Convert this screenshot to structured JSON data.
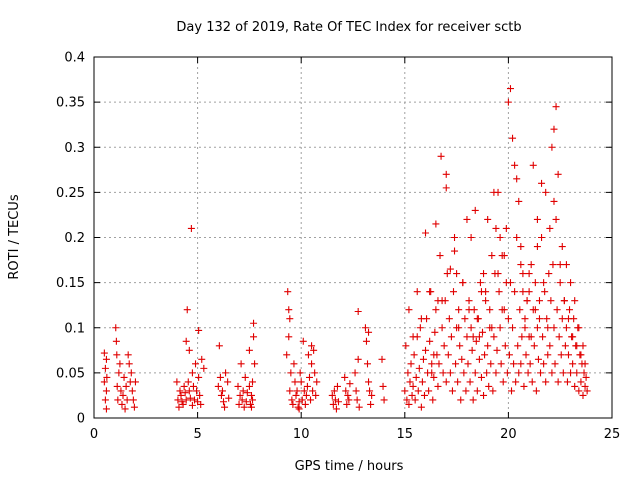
{
  "chart_data": {
    "type": "scatter",
    "title": "Day 132 of 2019, Rate Of TEC Index for receiver sctb",
    "xlabel": "GPS time / hours",
    "ylabel": "ROTI / TECUs",
    "xlim": [
      0,
      25
    ],
    "ylim": [
      0,
      0.4
    ],
    "x_ticks": [
      0,
      5,
      10,
      15,
      20,
      25
    ],
    "x_tick_labels": [
      "0",
      "5",
      "10",
      "15",
      "20",
      "25"
    ],
    "y_ticks": [
      0,
      0.05,
      0.1,
      0.15,
      0.2,
      0.25,
      0.3,
      0.35,
      0.4
    ],
    "y_tick_labels": [
      "0",
      "0.05",
      "0.1",
      "0.15",
      "0.2",
      "0.25",
      "0.3",
      "0.35",
      "0.4"
    ],
    "grid": true,
    "marker": "+",
    "color": "#e00000",
    "series": [
      {
        "name": "ROTI",
        "x": [
          0.5,
          0.5,
          0.55,
          0.55,
          0.6,
          0.6,
          0.6,
          0.62,
          1.05,
          1.08,
          1.1,
          1.12,
          1.15,
          1.2,
          1.25,
          1.3,
          1.35,
          1.4,
          1.45,
          1.5,
          1.55,
          1.6,
          1.65,
          1.7,
          1.75,
          1.8,
          1.85,
          1.9,
          1.95,
          2.0,
          4.0,
          4.05,
          4.1,
          4.15,
          4.2,
          4.25,
          4.3,
          4.35,
          4.4,
          4.45,
          4.5,
          4.55,
          4.6,
          4.65,
          4.7,
          4.75,
          4.8,
          4.85,
          4.9,
          4.95,
          5.0,
          5.05,
          5.1,
          5.15,
          5.2,
          5.3,
          4.45,
          4.6,
          4.75,
          5.05,
          6.0,
          6.05,
          6.1,
          6.15,
          6.2,
          6.25,
          6.3,
          6.35,
          6.45,
          6.5,
          6.95,
          7.0,
          7.05,
          7.1,
          7.15,
          7.2,
          7.25,
          7.3,
          7.35,
          7.4,
          7.5,
          7.55,
          7.6,
          7.65,
          7.7,
          7.75,
          7.7,
          7.65,
          7.5,
          7.6,
          9.3,
          9.35,
          9.4,
          9.45,
          9.5,
          9.55,
          9.6,
          9.65,
          9.7,
          9.75,
          9.8,
          9.85,
          9.9,
          9.95,
          10.0,
          10.05,
          10.1,
          10.15,
          10.2,
          10.25,
          10.3,
          10.35,
          10.4,
          10.45,
          10.5,
          10.55,
          10.6,
          10.65,
          10.7,
          10.75,
          9.4,
          9.45,
          9.9,
          10.5,
          11.5,
          11.55,
          11.6,
          11.65,
          11.7,
          11.75,
          11.8,
          12.1,
          12.15,
          12.2,
          12.25,
          12.3,
          12.35,
          12.6,
          12.65,
          12.7,
          12.75,
          12.8,
          13.1,
          13.15,
          13.2,
          13.25,
          13.3,
          13.35,
          13.4,
          13.9,
          13.95,
          14.0,
          12.75,
          13.25,
          15.0,
          15.05,
          15.1,
          15.15,
          15.2,
          15.25,
          15.3,
          15.35,
          15.4,
          15.45,
          15.5,
          15.55,
          15.6,
          15.65,
          15.7,
          15.75,
          15.8,
          15.85,
          15.9,
          15.95,
          16.0,
          16.05,
          16.1,
          16.15,
          16.2,
          16.25,
          16.3,
          16.35,
          16.4,
          16.45,
          16.5,
          16.55,
          16.6,
          16.65,
          16.7,
          16.75,
          16.8,
          16.85,
          16.9,
          16.95,
          17.0,
          17.05,
          17.1,
          17.15,
          17.2,
          17.25,
          17.3,
          17.35,
          17.4,
          17.45,
          17.5,
          17.55,
          17.6,
          17.65,
          17.7,
          17.75,
          17.8,
          17.85,
          17.9,
          17.95,
          18.0,
          18.05,
          18.1,
          18.15,
          18.2,
          18.25,
          18.3,
          18.35,
          18.4,
          18.45,
          18.5,
          18.55,
          18.6,
          18.65,
          18.7,
          18.75,
          18.8,
          18.85,
          18.9,
          18.95,
          19.0,
          19.05,
          19.1,
          19.15,
          19.2,
          19.25,
          19.3,
          19.35,
          19.4,
          19.45,
          19.5,
          19.55,
          19.6,
          19.65,
          19.7,
          19.75,
          19.8,
          19.85,
          19.9,
          19.95,
          20.0,
          20.05,
          20.1,
          20.15,
          20.2,
          20.25,
          20.3,
          20.35,
          20.4,
          20.45,
          20.5,
          20.55,
          20.6,
          20.65,
          20.7,
          20.75,
          20.8,
          20.85,
          20.9,
          20.95,
          21.0,
          21.05,
          21.1,
          21.15,
          21.2,
          21.25,
          21.3,
          21.35,
          21.4,
          21.45,
          21.5,
          21.55,
          21.6,
          21.65,
          21.7,
          21.75,
          21.8,
          21.85,
          21.9,
          21.95,
          22.0,
          22.05,
          22.1,
          22.15,
          22.2,
          22.25,
          22.3,
          22.35,
          22.4,
          22.45,
          22.5,
          22.55,
          22.6,
          22.65,
          22.7,
          22.75,
          22.8,
          22.85,
          22.9,
          22.95,
          23.0,
          23.05,
          23.1,
          23.15,
          23.2,
          23.25,
          23.3,
          23.35,
          23.4,
          23.45,
          23.5,
          23.55,
          23.6,
          23.65,
          23.7,
          23.75,
          23.8,
          16.0,
          16.5,
          17.0,
          17.4,
          17.5,
          18.0,
          18.4,
          18.6,
          19.3,
          19.4,
          19.6,
          19.8,
          20.0,
          20.1,
          20.2,
          20.3,
          20.4,
          20.5,
          20.6,
          21.0,
          21.2,
          21.4,
          21.6,
          21.8,
          22.0,
          22.1,
          22.2,
          22.3,
          22.4,
          22.6,
          22.8,
          23.0,
          23.2,
          23.4,
          23.6,
          16.2,
          16.8,
          17.2,
          18.2,
          18.8,
          15.2,
          15.4,
          15.6,
          15.8,
          16.4,
          16.6,
          17.6,
          17.8,
          18.1,
          18.3,
          18.5,
          18.7,
          18.9,
          19.1,
          19.5,
          19.7,
          19.9,
          20.7,
          20.8,
          20.9,
          21.1,
          21.3,
          21.5,
          21.7,
          21.9,
          22.5,
          22.7,
          22.9,
          23.1,
          23.3,
          23.5,
          23.7,
          19.2,
          19.0,
          21.4,
          22.2,
          21.0,
          20.6,
          17.0,
          16.3
        ],
        "y": [
          0.072,
          0.04,
          0.02,
          0.055,
          0.03,
          0.01,
          0.065,
          0.045,
          0.1,
          0.085,
          0.07,
          0.035,
          0.02,
          0.05,
          0.06,
          0.03,
          0.015,
          0.025,
          0.045,
          0.01,
          0.035,
          0.02,
          0.07,
          0.06,
          0.04,
          0.05,
          0.03,
          0.02,
          0.012,
          0.04,
          0.04,
          0.02,
          0.012,
          0.03,
          0.025,
          0.018,
          0.015,
          0.035,
          0.028,
          0.02,
          0.12,
          0.04,
          0.03,
          0.022,
          0.21,
          0.05,
          0.035,
          0.02,
          0.06,
          0.03,
          0.018,
          0.045,
          0.025,
          0.015,
          0.065,
          0.055,
          0.085,
          0.075,
          0.014,
          0.097,
          0.035,
          0.08,
          0.045,
          0.025,
          0.03,
          0.018,
          0.012,
          0.05,
          0.04,
          0.022,
          0.035,
          0.015,
          0.025,
          0.06,
          0.02,
          0.03,
          0.012,
          0.045,
          0.018,
          0.028,
          0.035,
          0.015,
          0.025,
          0.02,
          0.105,
          0.06,
          0.09,
          0.04,
          0.075,
          0.012,
          0.07,
          0.14,
          0.12,
          0.03,
          0.05,
          0.02,
          0.015,
          0.06,
          0.04,
          0.025,
          0.03,
          0.012,
          0.018,
          0.05,
          0.04,
          0.02,
          0.085,
          0.03,
          0.015,
          0.025,
          0.035,
          0.07,
          0.045,
          0.02,
          0.06,
          0.03,
          0.075,
          0.05,
          0.025,
          0.04,
          0.09,
          0.11,
          0.01,
          0.08,
          0.025,
          0.015,
          0.03,
          0.02,
          0.01,
          0.035,
          0.018,
          0.045,
          0.03,
          0.015,
          0.025,
          0.02,
          0.038,
          0.05,
          0.03,
          0.02,
          0.065,
          0.012,
          0.1,
          0.085,
          0.06,
          0.04,
          0.03,
          0.015,
          0.025,
          0.065,
          0.035,
          0.02,
          0.118,
          0.095,
          0.03,
          0.08,
          0.02,
          0.05,
          0.015,
          0.04,
          0.06,
          0.025,
          0.035,
          0.07,
          0.02,
          0.045,
          0.09,
          0.03,
          0.055,
          0.1,
          0.012,
          0.04,
          0.065,
          0.025,
          0.075,
          0.11,
          0.05,
          0.03,
          0.085,
          0.14,
          0.06,
          0.02,
          0.045,
          0.095,
          0.12,
          0.07,
          0.035,
          0.06,
          0.18,
          0.29,
          0.1,
          0.05,
          0.08,
          0.13,
          0.04,
          0.16,
          0.07,
          0.11,
          0.05,
          0.09,
          0.03,
          0.14,
          0.2,
          0.06,
          0.1,
          0.04,
          0.12,
          0.08,
          0.02,
          0.065,
          0.15,
          0.05,
          0.11,
          0.03,
          0.09,
          0.06,
          0.13,
          0.04,
          0.1,
          0.075,
          0.02,
          0.12,
          0.05,
          0.085,
          0.03,
          0.11,
          0.065,
          0.15,
          0.045,
          0.095,
          0.025,
          0.07,
          0.14,
          0.05,
          0.08,
          0.035,
          0.12,
          0.06,
          0.1,
          0.03,
          0.09,
          0.16,
          0.05,
          0.075,
          0.25,
          0.14,
          0.1,
          0.06,
          0.18,
          0.04,
          0.12,
          0.08,
          0.21,
          0.05,
          0.11,
          0.07,
          0.15,
          0.03,
          0.1,
          0.06,
          0.14,
          0.04,
          0.2,
          0.08,
          0.05,
          0.12,
          0.06,
          0.09,
          0.16,
          0.035,
          0.11,
          0.07,
          0.13,
          0.05,
          0.09,
          0.06,
          0.17,
          0.04,
          0.12,
          0.08,
          0.15,
          0.03,
          0.1,
          0.065,
          0.13,
          0.05,
          0.2,
          0.09,
          0.06,
          0.14,
          0.04,
          0.11,
          0.07,
          0.16,
          0.08,
          0.13,
          0.05,
          0.17,
          0.1,
          0.06,
          0.22,
          0.12,
          0.04,
          0.09,
          0.15,
          0.07,
          0.11,
          0.05,
          0.13,
          0.08,
          0.1,
          0.04,
          0.07,
          0.12,
          0.05,
          0.09,
          0.06,
          0.11,
          0.035,
          0.08,
          0.05,
          0.1,
          0.03,
          0.07,
          0.04,
          0.06,
          0.025,
          0.05,
          0.035,
          0.045,
          0.03,
          0.205,
          0.215,
          0.255,
          0.185,
          0.16,
          0.22,
          0.23,
          0.09,
          0.25,
          0.21,
          0.2,
          0.18,
          0.35,
          0.365,
          0.31,
          0.28,
          0.265,
          0.24,
          0.17,
          0.16,
          0.28,
          0.22,
          0.26,
          0.25,
          0.21,
          0.3,
          0.32,
          0.345,
          0.27,
          0.19,
          0.17,
          0.15,
          0.13,
          0.1,
          0.08,
          0.14,
          0.13,
          0.165,
          0.2,
          0.16,
          0.12,
          0.09,
          0.14,
          0.11,
          0.07,
          0.13,
          0.1,
          0.15,
          0.12,
          0.09,
          0.11,
          0.14,
          0.13,
          0.1,
          0.16,
          0.12,
          0.15,
          0.14,
          0.1,
          0.13,
          0.09,
          0.12,
          0.11,
          0.15,
          0.1,
          0.17,
          0.13,
          0.11,
          0.09,
          0.08,
          0.07,
          0.06,
          0.18,
          0.22,
          0.19,
          0.24,
          0.14,
          0.19,
          0.27,
          0.05
        ]
      }
    ]
  }
}
